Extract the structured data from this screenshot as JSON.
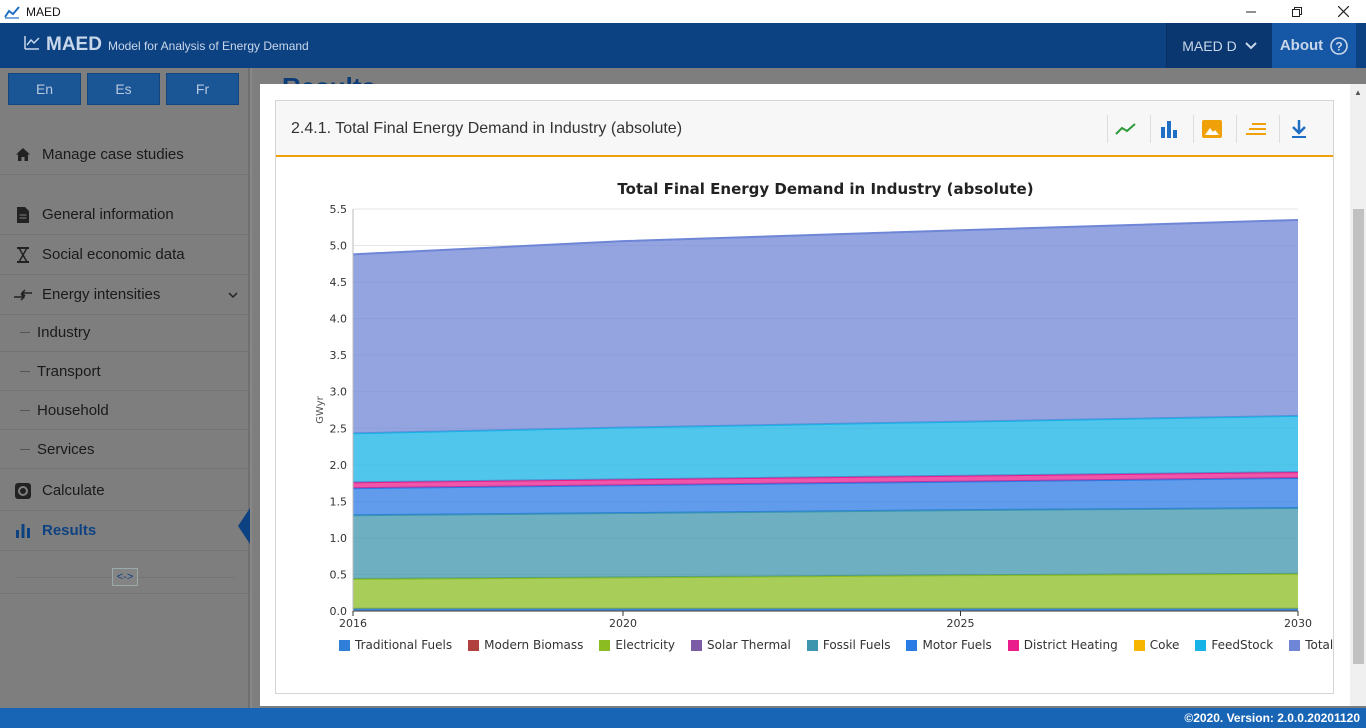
{
  "window": {
    "title": "MAED",
    "controls": [
      "minimize",
      "restore",
      "close"
    ]
  },
  "header": {
    "brand_name": "MAED",
    "brand_subtitle": "Model for Analysis of Energy Demand",
    "case_label": "MAED D",
    "about_label": "About"
  },
  "sidebar": {
    "languages": [
      "En",
      "Es",
      "Fr"
    ],
    "manage_label": "Manage case studies",
    "general_label": "General information",
    "social_label": "Social economic data",
    "energy_label": "Energy intensities",
    "sub_items": [
      "Industry",
      "Transport",
      "Household",
      "Services"
    ],
    "calculate_label": "Calculate",
    "results_label": "Results"
  },
  "content": {
    "heading": "Results",
    "card_title": "2.4.1. Total Final Energy Demand in Industry (absolute)"
  },
  "toolbar": [
    "line-chart-icon",
    "bar-chart-icon",
    "image-icon",
    "sort-icon",
    "download-icon"
  ],
  "footer": {
    "text": "©2020. Version: 2.0.0.20201120"
  },
  "chart_data": {
    "type": "area",
    "stacked": true,
    "title": "Total Final Energy Demand in Industry (absolute)",
    "xlabel": "",
    "ylabel": "GWyr",
    "x": [
      2016,
      2020,
      2025,
      2030
    ],
    "ylim": [
      0,
      5.5
    ],
    "yticks": [
      0.0,
      0.5,
      1.0,
      1.5,
      2.0,
      2.5,
      3.0,
      3.5,
      4.0,
      4.5,
      5.0,
      5.5
    ],
    "grid": true,
    "legend_position": "bottom",
    "series": [
      {
        "name": "Traditional Fuels",
        "color": "#2f7ed8",
        "values": [
          0.03,
          0.03,
          0.03,
          0.03
        ]
      },
      {
        "name": "Modern Biomass",
        "color": "#b0413e",
        "values": [
          0.0,
          0.0,
          0.0,
          0.0
        ]
      },
      {
        "name": "Electricity",
        "color": "#8bbc21",
        "values": [
          0.41,
          0.43,
          0.46,
          0.48
        ]
      },
      {
        "name": "Solar Thermal",
        "color": "#7b5aa6",
        "values": [
          0.0,
          0.0,
          0.0,
          0.0
        ]
      },
      {
        "name": "Fossil Fuels",
        "color": "#3d96ae",
        "values": [
          0.87,
          0.88,
          0.89,
          0.9
        ]
      },
      {
        "name": "Motor Fuels",
        "color": "#2b7be4",
        "values": [
          0.37,
          0.38,
          0.39,
          0.41
        ]
      },
      {
        "name": "District Heating",
        "color": "#e91e8c",
        "values": [
          0.08,
          0.08,
          0.08,
          0.08
        ]
      },
      {
        "name": "Coke",
        "color": "#f7b500",
        "values": [
          0.0,
          0.0,
          0.0,
          0.0
        ]
      },
      {
        "name": "FeedStock",
        "color": "#17b3e6",
        "values": [
          0.67,
          0.71,
          0.74,
          0.77
        ]
      },
      {
        "name": "Total",
        "color": "#6f86d6",
        "values": [
          2.45,
          2.55,
          2.62,
          2.68
        ]
      }
    ]
  }
}
